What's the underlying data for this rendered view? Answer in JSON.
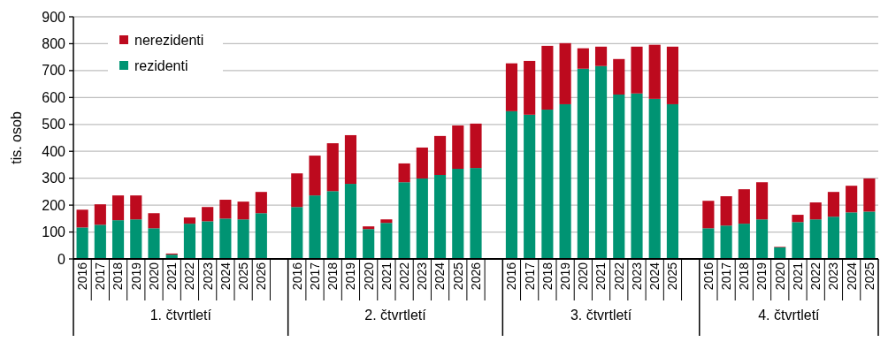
{
  "chart_data": {
    "type": "bar",
    "stacked": true,
    "ylabel": "tis. osob",
    "categories": [
      "2016",
      "2017",
      "2018",
      "2019",
      "2020",
      "2021",
      "2022",
      "2023",
      "2024",
      "2025",
      "2026",
      null,
      "2016",
      "2017",
      "2018",
      "2019",
      "2020",
      "2021",
      "2022",
      "2023",
      "2024",
      "2025",
      "2026",
      null,
      "2016",
      "2017",
      "2018",
      "2019",
      "2020",
      "2021",
      "2022",
      "2023",
      "2024",
      "2025",
      null,
      "2016",
      "2017",
      "2018",
      "2019",
      "2020",
      "2021",
      "2022",
      "2023",
      "2024",
      "2025"
    ],
    "series": [
      {
        "name": "rezidenti",
        "color": "#009473",
        "values": [
          117,
          127,
          144,
          147,
          114,
          16,
          131,
          140,
          150,
          147,
          170,
          null,
          193,
          236,
          252,
          279,
          111,
          134,
          285,
          299,
          312,
          335,
          338,
          null,
          549,
          536,
          555,
          575,
          707,
          717,
          611,
          615,
          595,
          575,
          null,
          114,
          124,
          131,
          147,
          43,
          137,
          147,
          157,
          173,
          176
        ]
      },
      {
        "name": "nerezidenti",
        "color": "#bd0a1e",
        "values": [
          66,
          76,
          92,
          89,
          56,
          4,
          23,
          53,
          70,
          66,
          79,
          null,
          125,
          148,
          178,
          181,
          10,
          13,
          70,
          115,
          145,
          161,
          165,
          null,
          178,
          200,
          237,
          227,
          76,
          72,
          132,
          174,
          201,
          214,
          null,
          102,
          109,
          128,
          138,
          2,
          27,
          63,
          92,
          99,
          123
        ]
      }
    ],
    "ylim": [
      0,
      900
    ],
    "yticks": [
      0,
      100,
      200,
      300,
      400,
      500,
      600,
      700,
      800,
      900
    ],
    "grid": "y",
    "legend": "top left",
    "annotations": [
      "1. čtvrtletí",
      "2. čtvrtletí",
      "3. čtvrtletí",
      "4. čtvrtletí"
    ]
  }
}
